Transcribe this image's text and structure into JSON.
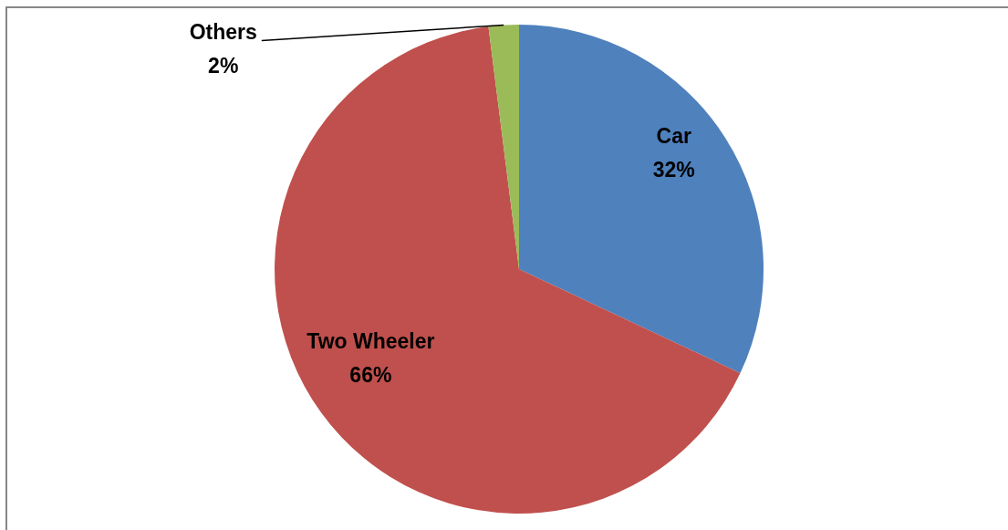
{
  "chart_data": {
    "type": "pie",
    "categories": [
      "Car",
      "Two Wheeler",
      "Others"
    ],
    "values": [
      32,
      66,
      2
    ],
    "colors": [
      "#4f81bd",
      "#c0504d",
      "#9bbb59"
    ],
    "value_labels": [
      "32%",
      "66%",
      "2%"
    ]
  }
}
